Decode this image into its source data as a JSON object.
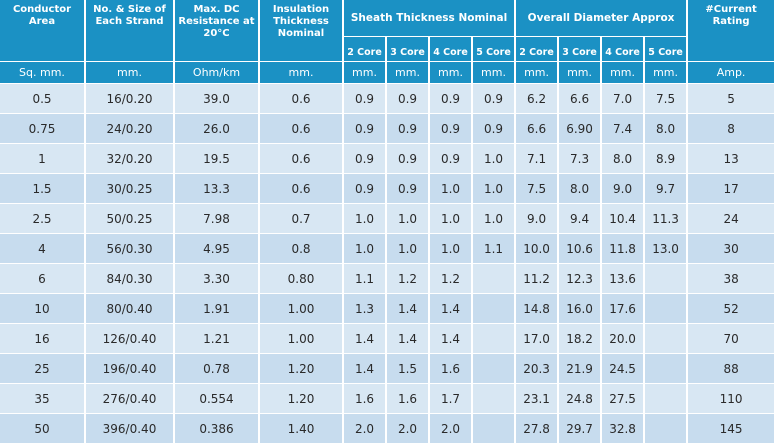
{
  "headers": {
    "conductor_area": "Conductor Area",
    "strand": "No. & Size of Each Strand",
    "resistance": "Max. DC Resistance at 20°C",
    "insulation": "Insulation Thickness Nominal",
    "sheath_group": "Sheath Thickness Nominal",
    "diameter_group": "Overall Diameter Approx",
    "current": "#Current Rating"
  },
  "core_labels": {
    "sheath": [
      "2 Core",
      "3 Core",
      "4 Core",
      "5 Core"
    ],
    "diameter": [
      "2 Core",
      "3 Core",
      "4 Core",
      "5 Core"
    ]
  },
  "units": {
    "area": "Sq. mm.",
    "strand": "mm.",
    "resistance": "Ohm/km",
    "insulation": "mm.",
    "sheath": [
      "mm.",
      "mm.",
      "mm.",
      "mm."
    ],
    "diameter": [
      "mm.",
      "mm.",
      "mm.",
      "mm."
    ],
    "current": "Amp."
  },
  "rows": [
    {
      "area": "0.5",
      "strand": "16/0.20",
      "resistance": "39.0",
      "insulation": "0.6",
      "sheath": [
        "0.9",
        "0.9",
        "0.9",
        "0.9"
      ],
      "diameter": [
        "6.2",
        "6.6",
        "7.0",
        "7.5"
      ],
      "current": "5"
    },
    {
      "area": "0.75",
      "strand": "24/0.20",
      "resistance": "26.0",
      "insulation": "0.6",
      "sheath": [
        "0.9",
        "0.9",
        "0.9",
        "0.9"
      ],
      "diameter": [
        "6.6",
        "6.90",
        "7.4",
        "8.0"
      ],
      "current": "8"
    },
    {
      "area": "1",
      "strand": "32/0.20",
      "resistance": "19.5",
      "insulation": "0.6",
      "sheath": [
        "0.9",
        "0.9",
        "0.9",
        "1.0"
      ],
      "diameter": [
        "7.1",
        "7.3",
        "8.0",
        "8.9"
      ],
      "current": "13"
    },
    {
      "area": "1.5",
      "strand": "30/0.25",
      "resistance": "13.3",
      "insulation": "0.6",
      "sheath": [
        "0.9",
        "0.9",
        "1.0",
        "1.0"
      ],
      "diameter": [
        "7.5",
        "8.0",
        "9.0",
        "9.7"
      ],
      "current": "17"
    },
    {
      "area": "2.5",
      "strand": "50/0.25",
      "resistance": "7.98",
      "insulation": "0.7",
      "sheath": [
        "1.0",
        "1.0",
        "1.0",
        "1.0"
      ],
      "diameter": [
        "9.0",
        "9.4",
        "10.4",
        "11.3"
      ],
      "current": "24"
    },
    {
      "area": "4",
      "strand": "56/0.30",
      "resistance": "4.95",
      "insulation": "0.8",
      "sheath": [
        "1.0",
        "1.0",
        "1.0",
        "1.1"
      ],
      "diameter": [
        "10.0",
        "10.6",
        "11.8",
        "13.0"
      ],
      "current": "30"
    },
    {
      "area": "6",
      "strand": "84/0.30",
      "resistance": "3.30",
      "insulation": "0.80",
      "sheath": [
        "1.1",
        "1.2",
        "1.2",
        ""
      ],
      "diameter": [
        "11.2",
        "12.3",
        "13.6",
        ""
      ],
      "current": "38"
    },
    {
      "area": "10",
      "strand": "80/0.40",
      "resistance": "1.91",
      "insulation": "1.00",
      "sheath": [
        "1.3",
        "1.4",
        "1.4",
        ""
      ],
      "diameter": [
        "14.8",
        "16.0",
        "17.6",
        ""
      ],
      "current": "52"
    },
    {
      "area": "16",
      "strand": "126/0.40",
      "resistance": "1.21",
      "insulation": "1.00",
      "sheath": [
        "1.4",
        "1.4",
        "1.4",
        ""
      ],
      "diameter": [
        "17.0",
        "18.2",
        "20.0",
        ""
      ],
      "current": "70"
    },
    {
      "area": "25",
      "strand": "196/0.40",
      "resistance": "0.78",
      "insulation": "1.20",
      "sheath": [
        "1.4",
        "1.5",
        "1.6",
        ""
      ],
      "diameter": [
        "20.3",
        "21.9",
        "24.5",
        ""
      ],
      "current": "88"
    },
    {
      "area": "35",
      "strand": "276/0.40",
      "resistance": "0.554",
      "insulation": "1.20",
      "sheath": [
        "1.6",
        "1.6",
        "1.7",
        ""
      ],
      "diameter": [
        "23.1",
        "24.8",
        "27.5",
        ""
      ],
      "current": "110"
    },
    {
      "area": "50",
      "strand": "396/0.40",
      "resistance": "0.386",
      "insulation": "1.40",
      "sheath": [
        "2.0",
        "2.0",
        "2.0",
        ""
      ],
      "diameter": [
        "27.8",
        "29.7",
        "32.8",
        ""
      ],
      "current": "145"
    }
  ]
}
